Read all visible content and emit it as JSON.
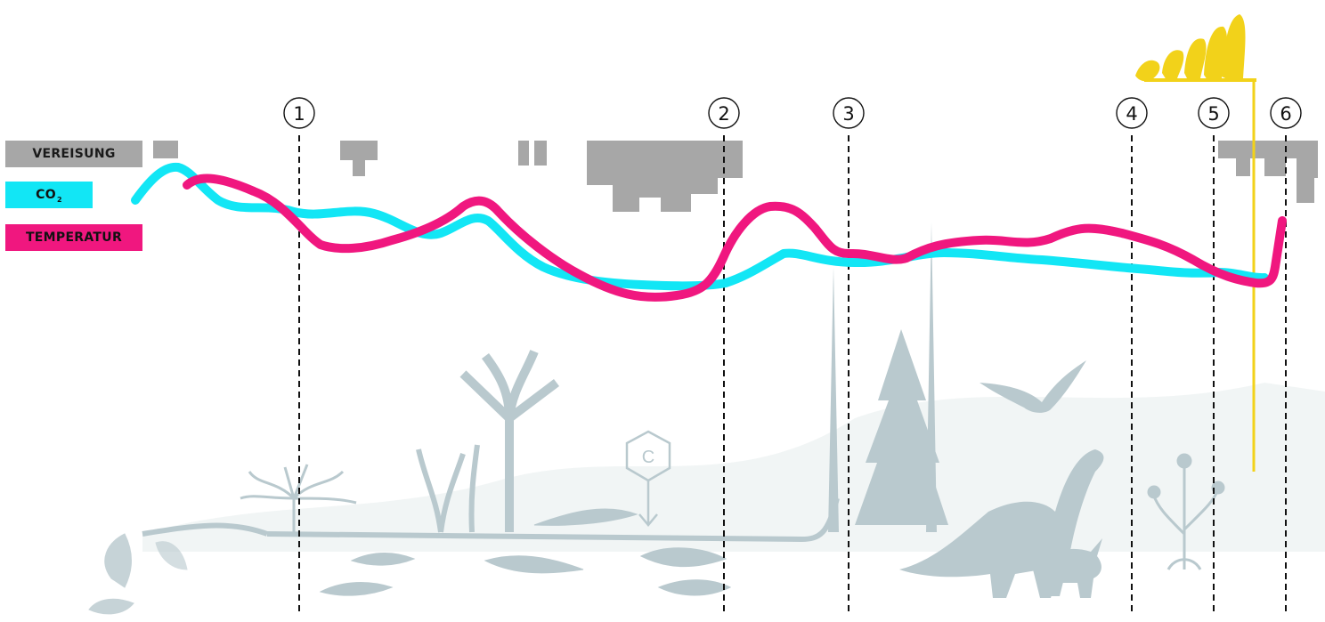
{
  "legend": {
    "glaciation": "VEREISUNG",
    "co2_main": "CO",
    "co2_sub": "2",
    "temperature": "TEMPERATUR"
  },
  "markers": [
    {
      "label": "1"
    },
    {
      "label": "2"
    },
    {
      "label": "3"
    },
    {
      "label": "4"
    },
    {
      "label": "5"
    },
    {
      "label": "6"
    }
  ],
  "colors": {
    "glaciation": "#a7a7a7",
    "co2": "#12e6f5",
    "temperature": "#f0177f",
    "human_evolution": "#f2d21a",
    "silhouettes": "#b9c9ce"
  },
  "icons": {
    "carbon": "C"
  }
}
